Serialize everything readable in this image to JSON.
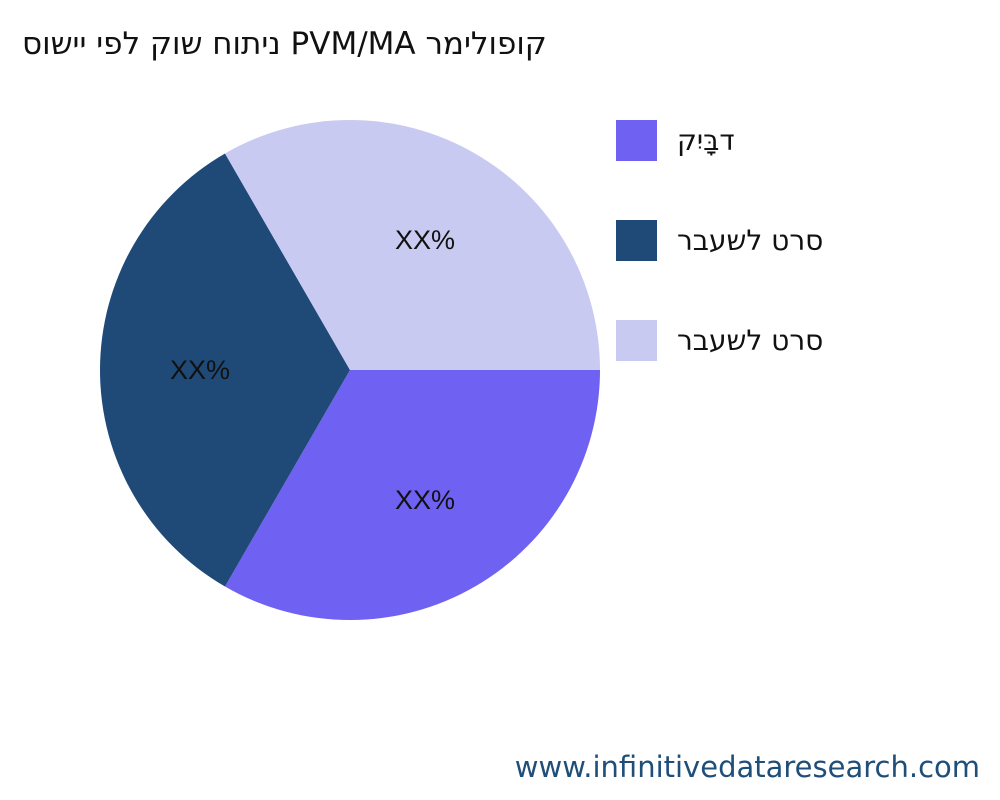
{
  "title": "סושיי יפל קוש חותינ PVM/MA רמילופוק",
  "chart_data": {
    "type": "pie",
    "title": "סושיי יפל קוש חותינ PVM/MA רמילופוק",
    "slices": [
      {
        "name": "קיִבָּד",
        "value": 33.33,
        "label": "XX%",
        "color": "#6f61f2"
      },
      {
        "name": "רבעשל טרס",
        "value": 33.33,
        "label": "XX%",
        "color": "#1f4a78"
      },
      {
        "name": "רבעשל טרס",
        "value": 33.33,
        "label": "XX%",
        "color": "#c9caf1"
      }
    ],
    "legend_position": "right"
  },
  "footer": "www.infinitivedataresearch.com"
}
